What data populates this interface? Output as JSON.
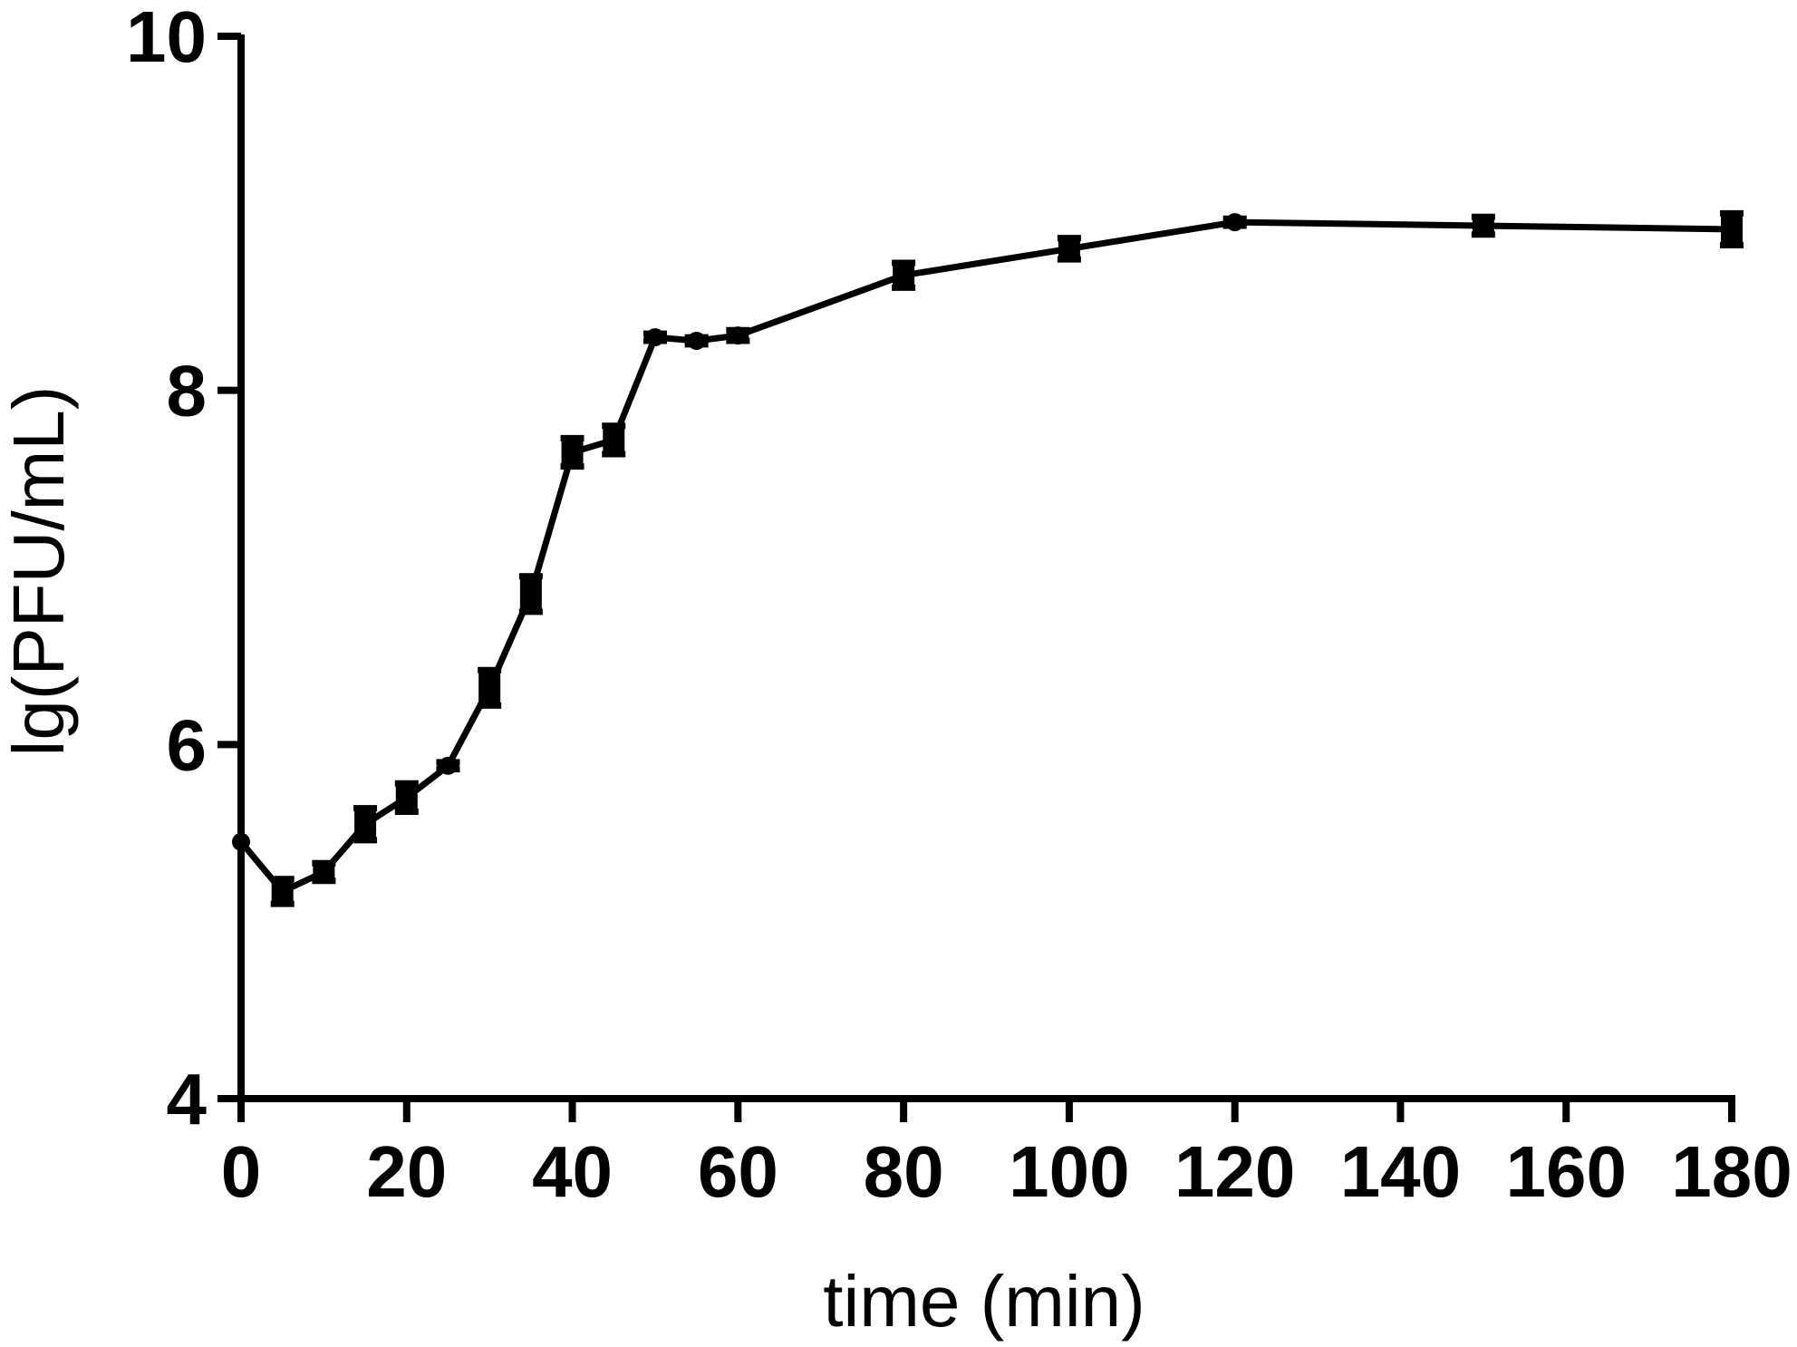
{
  "chart_data": {
    "type": "line",
    "title": "",
    "xlabel": "time (min)",
    "ylabel": "lg(PFU/mL)",
    "xlim": [
      0,
      180
    ],
    "ylim": [
      4,
      10
    ],
    "xticks": [
      0,
      20,
      40,
      60,
      80,
      100,
      120,
      140,
      160,
      180
    ],
    "yticks": [
      4,
      6,
      8,
      10
    ],
    "grid": false,
    "legend": "none",
    "line_color": "#000000",
    "series": [
      {
        "x": [
          0,
          5,
          10,
          15,
          20,
          25,
          30,
          35,
          40,
          45,
          50,
          55,
          60,
          80,
          100,
          120,
          150,
          180
        ],
        "y": [
          5.45,
          5.17,
          5.28,
          5.55,
          5.7,
          5.88,
          6.32,
          6.85,
          7.65,
          7.72,
          8.3,
          8.28,
          8.31,
          8.65,
          8.8,
          8.95,
          8.93,
          8.91
        ],
        "error": [
          0.0,
          0.07,
          0.05,
          0.09,
          0.08,
          0.02,
          0.1,
          0.1,
          0.08,
          0.08,
          0.02,
          0.02,
          0.03,
          0.07,
          0.06,
          0.02,
          0.05,
          0.09
        ]
      }
    ]
  }
}
